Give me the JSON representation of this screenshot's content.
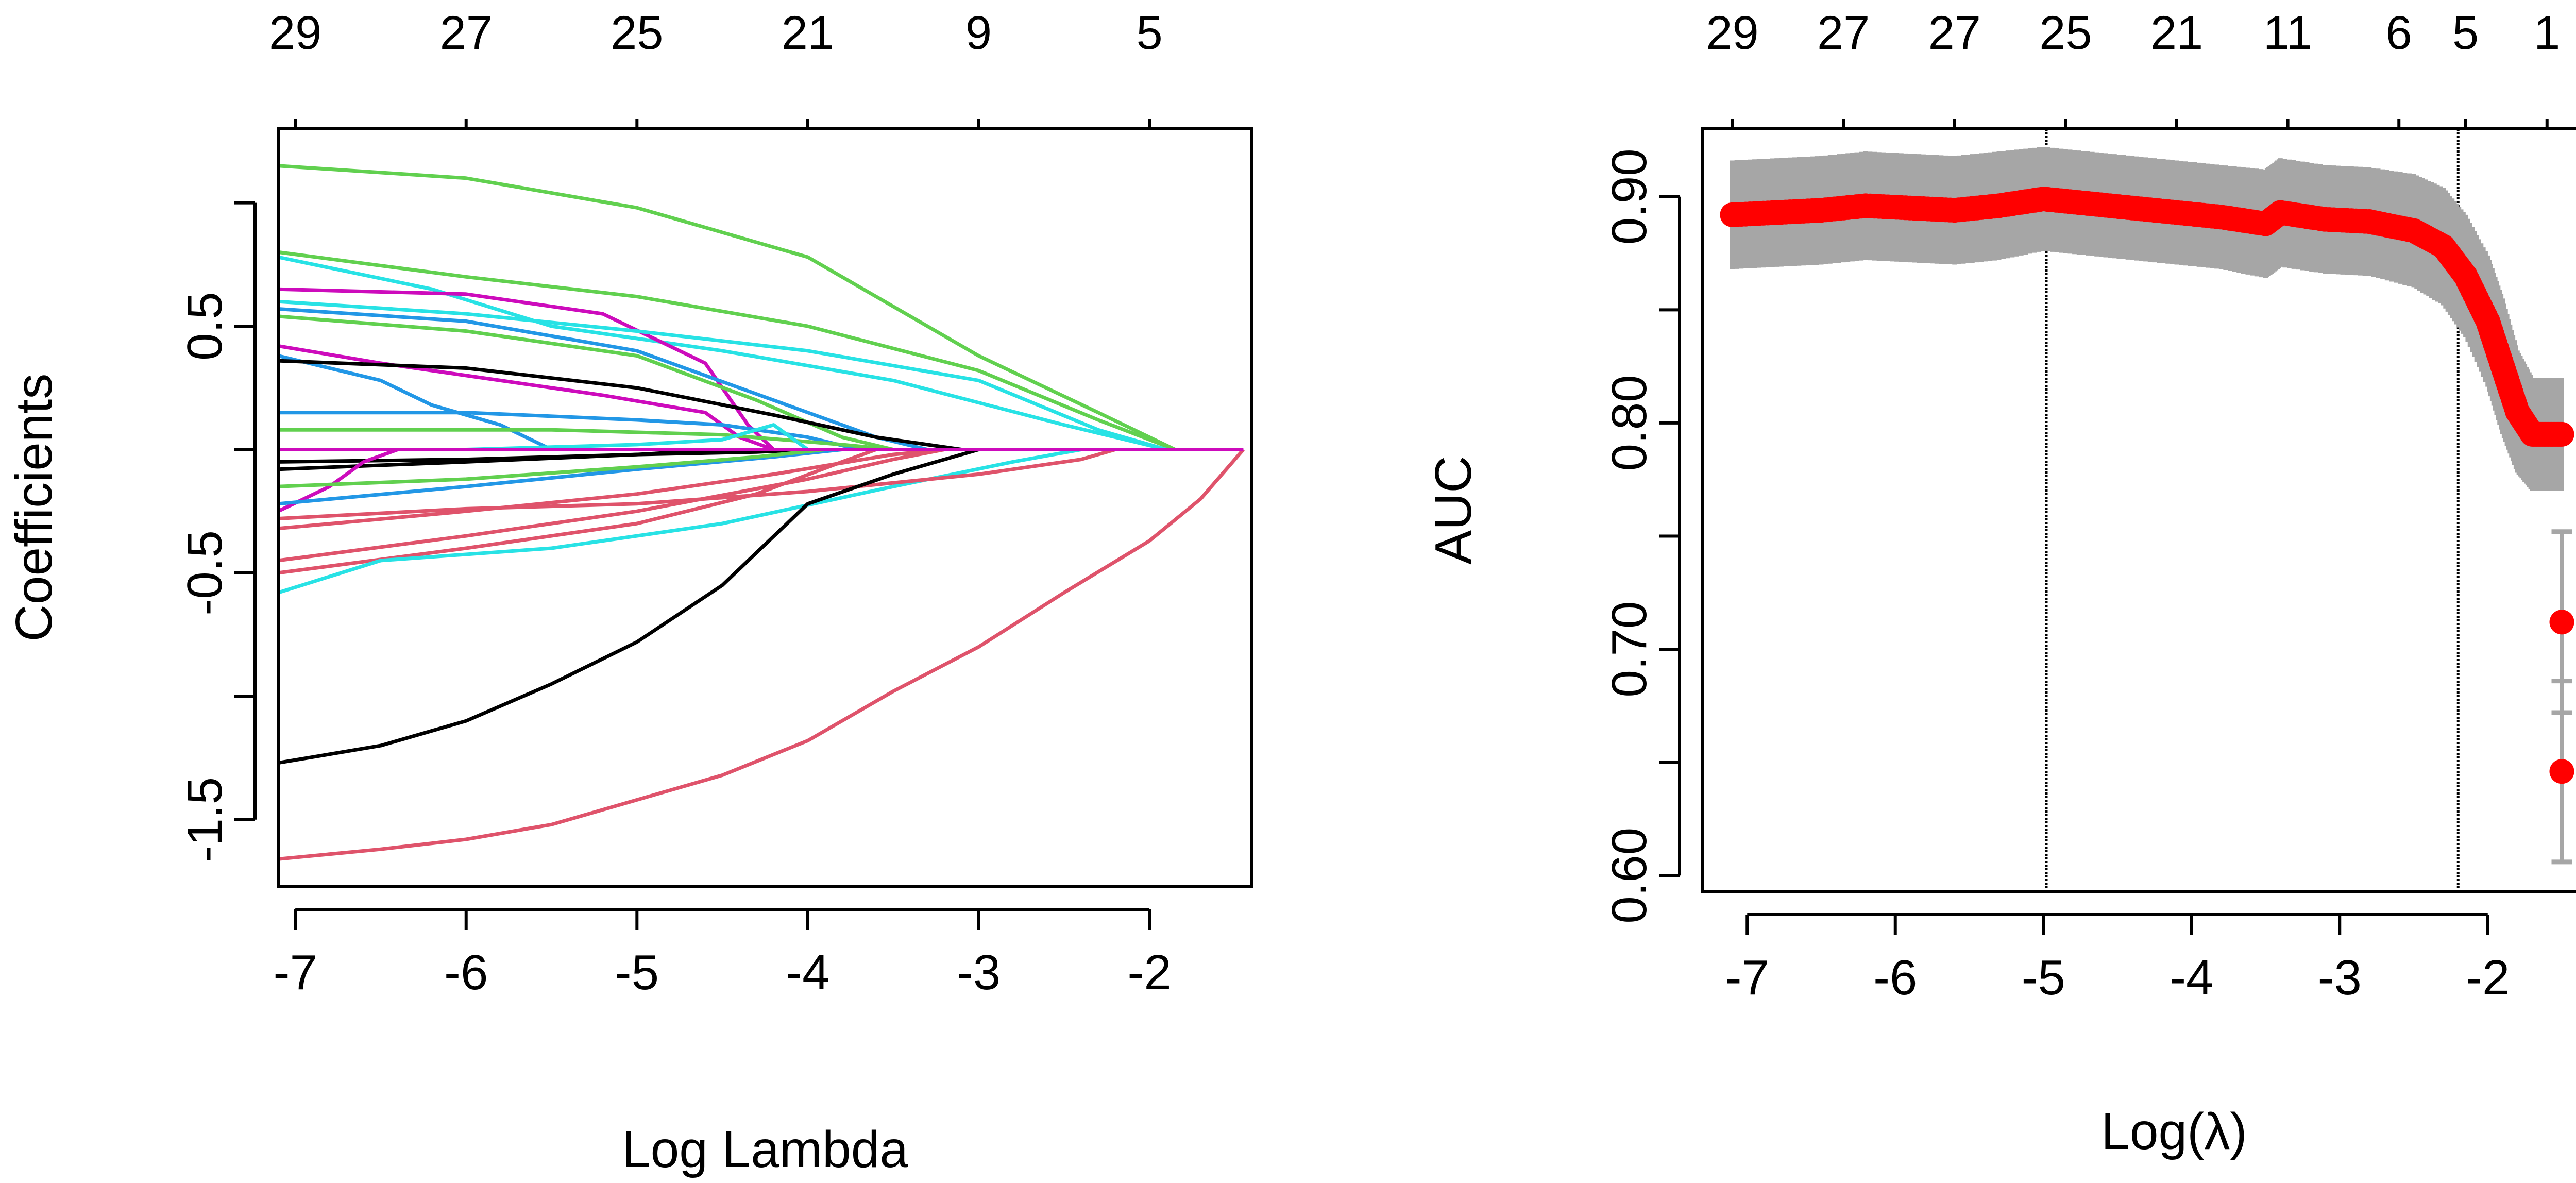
{
  "chart_data": [
    {
      "type": "line",
      "panel": "left",
      "xlabel": "Log Lambda",
      "ylabel": "Coefficients",
      "xlim": [
        -7.1,
        -1.4
      ],
      "ylim": [
        -1.77,
        1.3
      ],
      "x_ticks": [
        -7,
        -6,
        -5,
        -4,
        -3,
        -2
      ],
      "x_tick_labels": [
        "-7",
        "-6",
        "-5",
        "-4",
        "-3",
        "-2"
      ],
      "y_ticks": [
        -1.5,
        -1.0,
        -0.5,
        0.0,
        0.5,
        1.0
      ],
      "y_tick_labels": [
        "-1.5",
        "",
        "-0.5",
        "",
        "0.5",
        ""
      ],
      "top_ticks": [
        -7,
        -6,
        -5,
        -4,
        -3,
        -2
      ],
      "top_tick_labels": [
        "29",
        "27",
        "25",
        "21",
        "9",
        "5"
      ],
      "grid": false,
      "series": [
        {
          "color": "#61D04F",
          "points": [
            [
              -7.1,
              1.15
            ],
            [
              -6,
              1.1
            ],
            [
              -5,
              0.98
            ],
            [
              -4,
              0.78
            ],
            [
              -3,
              0.38
            ],
            [
              -2.3,
              0.15
            ],
            [
              -1.85,
              0
            ]
          ]
        },
        {
          "color": "#61D04F",
          "points": [
            [
              -7.1,
              0.8
            ],
            [
              -6,
              0.7
            ],
            [
              -5,
              0.62
            ],
            [
              -4,
              0.5
            ],
            [
              -3,
              0.32
            ],
            [
              -2.3,
              0.12
            ],
            [
              -1.85,
              0
            ]
          ]
        },
        {
          "color": "#28E2E5",
          "points": [
            [
              -7.1,
              0.78
            ],
            [
              -6.2,
              0.65
            ],
            [
              -5.5,
              0.5
            ],
            [
              -4.5,
              0.4
            ],
            [
              -3.5,
              0.28
            ],
            [
              -2.5,
              0.1
            ],
            [
              -1.9,
              0
            ]
          ]
        },
        {
          "color": "#CD0BBC",
          "points": [
            [
              -7.1,
              0.65
            ],
            [
              -6,
              0.63
            ],
            [
              -5.2,
              0.55
            ],
            [
              -4.6,
              0.35
            ],
            [
              -4.35,
              0.1
            ],
            [
              -4.2,
              0
            ]
          ]
        },
        {
          "color": "#28E2E5",
          "points": [
            [
              -7.1,
              0.6
            ],
            [
              -6,
              0.55
            ],
            [
              -5,
              0.48
            ],
            [
              -4,
              0.4
            ],
            [
              -3,
              0.28
            ],
            [
              -2.3,
              0.08
            ],
            [
              -1.9,
              0
            ]
          ]
        },
        {
          "color": "#2297E6",
          "points": [
            [
              -7.1,
              0.57
            ],
            [
              -6,
              0.52
            ],
            [
              -5,
              0.4
            ],
            [
              -4.2,
              0.2
            ],
            [
              -3.6,
              0.05
            ],
            [
              -3.3,
              0
            ]
          ]
        },
        {
          "color": "#61D04F",
          "points": [
            [
              -7.1,
              0.54
            ],
            [
              -6,
              0.48
            ],
            [
              -5,
              0.38
            ],
            [
              -4.3,
              0.2
            ],
            [
              -3.8,
              0.05
            ],
            [
              -3.5,
              0
            ]
          ]
        },
        {
          "color": "#CD0BBC",
          "points": [
            [
              -7.1,
              0.42
            ],
            [
              -6.5,
              0.35
            ],
            [
              -5.8,
              0.28
            ],
            [
              -5.2,
              0.22
            ],
            [
              -4.6,
              0.15
            ],
            [
              -4.4,
              0.05
            ],
            [
              -4.2,
              0
            ]
          ]
        },
        {
          "color": "#2297E6",
          "points": [
            [
              -7.1,
              0.38
            ],
            [
              -6.5,
              0.28
            ],
            [
              -6.2,
              0.18
            ],
            [
              -5.8,
              0.1
            ],
            [
              -5.5,
              0
            ]
          ]
        },
        {
          "color": "#000000",
          "points": [
            [
              -7.1,
              0.36
            ],
            [
              -6,
              0.33
            ],
            [
              -5,
              0.25
            ],
            [
              -4.2,
              0.14
            ],
            [
              -3.6,
              0.05
            ],
            [
              -3.1,
              0
            ]
          ]
        },
        {
          "color": "#2297E6",
          "points": [
            [
              -7.1,
              0.15
            ],
            [
              -6,
              0.15
            ],
            [
              -5,
              0.12
            ],
            [
              -4.5,
              0.1
            ],
            [
              -4,
              0.05
            ],
            [
              -3.7,
              0
            ]
          ]
        },
        {
          "color": "#61D04F",
          "points": [
            [
              -7.1,
              0.08
            ],
            [
              -5.5,
              0.08
            ],
            [
              -4.5,
              0.06
            ],
            [
              -3.8,
              0.02
            ],
            [
              -3.5,
              0
            ]
          ]
        },
        {
          "color": "#28E2E5",
          "points": [
            [
              -7.1,
              0.0
            ],
            [
              -6,
              0.0
            ],
            [
              -5,
              0.02
            ],
            [
              -4.5,
              0.04
            ],
            [
              -4.2,
              0.1
            ],
            [
              -4.0,
              0
            ]
          ]
        },
        {
          "color": "#000000",
          "points": [
            [
              -7.1,
              -0.05
            ],
            [
              -6,
              -0.04
            ],
            [
              -5,
              -0.02
            ],
            [
              -4.3,
              -0.01
            ],
            [
              -4,
              0
            ]
          ]
        },
        {
          "color": "#000000",
          "points": [
            [
              -7.1,
              -0.08
            ],
            [
              -6,
              -0.05
            ],
            [
              -5,
              -0.02
            ],
            [
              -4.5,
              0.0
            ],
            [
              -4.2,
              0
            ]
          ]
        },
        {
          "color": "#CD0BBC",
          "points": [
            [
              -7.1,
              -0.25
            ],
            [
              -6.8,
              -0.15
            ],
            [
              -6.6,
              -0.05
            ],
            [
              -6.4,
              0
            ]
          ]
        },
        {
          "color": "#2297E6",
          "points": [
            [
              -7.1,
              -0.22
            ],
            [
              -6,
              -0.15
            ],
            [
              -5,
              -0.08
            ],
            [
              -4.2,
              -0.03
            ],
            [
              -3.8,
              0
            ]
          ]
        },
        {
          "color": "#61D04F",
          "points": [
            [
              -7.1,
              -0.15
            ],
            [
              -6,
              -0.12
            ],
            [
              -5,
              -0.07
            ],
            [
              -4.3,
              -0.03
            ],
            [
              -3.9,
              0
            ]
          ]
        },
        {
          "color": "#DF536B",
          "points": [
            [
              -7.1,
              -0.32
            ],
            [
              -6,
              -0.25
            ],
            [
              -5,
              -0.18
            ],
            [
              -4.2,
              -0.1
            ],
            [
              -3.5,
              -0.02
            ],
            [
              -3.2,
              0
            ]
          ]
        },
        {
          "color": "#DF536B",
          "points": [
            [
              -7.1,
              -0.45
            ],
            [
              -6,
              -0.35
            ],
            [
              -5,
              -0.25
            ],
            [
              -4,
              -0.12
            ],
            [
              -3.5,
              -0.04
            ],
            [
              -3.2,
              0
            ]
          ]
        },
        {
          "color": "#DF536B",
          "points": [
            [
              -7.1,
              -0.5
            ],
            [
              -6,
              -0.4
            ],
            [
              -5,
              -0.3
            ],
            [
              -4.3,
              -0.18
            ],
            [
              -3.8,
              -0.05
            ],
            [
              -3.6,
              0
            ]
          ]
        },
        {
          "color": "#28E2E5",
          "points": [
            [
              -7.1,
              -0.58
            ],
            [
              -6.5,
              -0.45
            ],
            [
              -5.5,
              -0.4
            ],
            [
              -4.5,
              -0.3
            ],
            [
              -3.5,
              -0.15
            ],
            [
              -2.8,
              -0.05
            ],
            [
              -2.4,
              0
            ]
          ]
        },
        {
          "color": "#DF536B",
          "points": [
            [
              -7.1,
              -0.28
            ],
            [
              -6,
              -0.24
            ],
            [
              -5,
              -0.22
            ],
            [
              -4,
              -0.17
            ],
            [
              -3,
              -0.1
            ],
            [
              -2.4,
              -0.04
            ],
            [
              -2.2,
              0
            ]
          ]
        },
        {
          "color": "#000000",
          "points": [
            [
              -7.1,
              -1.27
            ],
            [
              -6.5,
              -1.2
            ],
            [
              -6,
              -1.1
            ],
            [
              -5.5,
              -0.95
            ],
            [
              -5,
              -0.78
            ],
            [
              -4.5,
              -0.55
            ],
            [
              -4,
              -0.22
            ],
            [
              -3.5,
              -0.1
            ],
            [
              -3,
              0
            ]
          ]
        },
        {
          "color": "#DF536B",
          "points": [
            [
              -7.1,
              -1.66
            ],
            [
              -6.5,
              -1.62
            ],
            [
              -6,
              -1.58
            ],
            [
              -5.5,
              -1.52
            ],
            [
              -5,
              -1.42
            ],
            [
              -4.5,
              -1.32
            ],
            [
              -4,
              -1.18
            ],
            [
              -3.5,
              -0.98
            ],
            [
              -3,
              -0.8
            ],
            [
              -2.5,
              -0.58
            ],
            [
              -2,
              -0.37
            ],
            [
              -1.7,
              -0.2
            ],
            [
              -1.45,
              0
            ]
          ]
        },
        {
          "color": "#CD0BBC",
          "points": [
            [
              -7.1,
              0
            ],
            [
              -1.45,
              0
            ]
          ]
        }
      ]
    },
    {
      "type": "scatter",
      "panel": "right",
      "xlabel": "Log(λ)",
      "ylabel": "AUC",
      "xlim": [
        -7.3,
        -1.3
      ],
      "ylim": [
        0.593,
        0.93
      ],
      "x_ticks": [
        -7,
        -6,
        -5,
        -4,
        -3,
        -2
      ],
      "x_tick_labels": [
        "-7",
        "-6",
        "-5",
        "-4",
        "-3",
        "-2"
      ],
      "y_ticks": [
        0.6,
        0.65,
        0.7,
        0.75,
        0.8,
        0.85,
        0.9
      ],
      "y_tick_labels": [
        "0.60",
        "",
        "0.70",
        "",
        "0.80",
        "",
        "0.90"
      ],
      "top_ticks": [
        -7.1,
        -6.35,
        -5.6,
        -4.85,
        -4.1,
        -3.35,
        -2.6,
        -2.15,
        -1.6
      ],
      "top_tick_labels": [
        "29",
        "27",
        "27",
        "25",
        "21",
        "11",
        "6",
        "5",
        "1"
      ],
      "vlines": [
        -4.98,
        -2.2
      ],
      "grid": false,
      "series": [
        {
          "color": "#FF0000",
          "error_bar_color": "#A6A6A6",
          "points": [
            [
              -7.1,
              0.892,
              0.868,
              0.916
            ],
            [
              -6.8,
              0.893,
              0.869,
              0.917
            ],
            [
              -6.5,
              0.894,
              0.87,
              0.918
            ],
            [
              -6.2,
              0.896,
              0.872,
              0.92
            ],
            [
              -5.9,
              0.895,
              0.871,
              0.919
            ],
            [
              -5.6,
              0.894,
              0.87,
              0.918
            ],
            [
              -5.3,
              0.896,
              0.872,
              0.92
            ],
            [
              -5.0,
              0.899,
              0.876,
              0.922
            ],
            [
              -4.7,
              0.897,
              0.874,
              0.92
            ],
            [
              -4.4,
              0.895,
              0.872,
              0.918
            ],
            [
              -4.1,
              0.893,
              0.87,
              0.916
            ],
            [
              -3.8,
              0.891,
              0.868,
              0.914
            ],
            [
              -3.5,
              0.888,
              0.864,
              0.912
            ],
            [
              -3.4,
              0.893,
              0.869,
              0.917
            ],
            [
              -3.1,
              0.89,
              0.866,
              0.914
            ],
            [
              -2.8,
              0.889,
              0.865,
              0.913
            ],
            [
              -2.5,
              0.885,
              0.86,
              0.91
            ],
            [
              -2.3,
              0.878,
              0.852,
              0.904
            ],
            [
              -2.15,
              0.865,
              0.838,
              0.892
            ],
            [
              -2.0,
              0.845,
              0.816,
              0.874
            ],
            [
              -1.9,
              0.825,
              0.795,
              0.855
            ],
            [
              -1.8,
              0.805,
              0.778,
              0.832
            ],
            [
              -1.7,
              0.795,
              0.77,
              0.82
            ],
            [
              -1.6,
              0.795,
              0.77,
              0.82
            ],
            [
              -1.5,
              0.795,
              0.77,
              0.82
            ],
            [
              -1.5,
              0.712,
              0.672,
              0.752
            ],
            [
              -1.5,
              0.646,
              0.606,
              0.686
            ]
          ]
        }
      ]
    }
  ]
}
